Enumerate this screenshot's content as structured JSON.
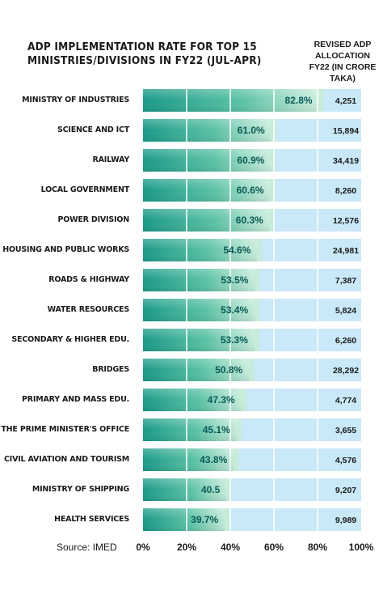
{
  "chart_data": {
    "type": "bar",
    "orientation": "horizontal",
    "title": "ADP IMPLEMENTATION RATE FOR TOP 15 MINISTRIES/DIVISIONS IN FY22 (JUL-APR)",
    "allocation_header": "REVISED ADP ALLOCATION FY22 (IN CRORE TAKA)",
    "categories": [
      "MINISTRY OF INDUSTRIES",
      "SCIENCE AND ICT",
      "RAILWAY",
      "LOCAL GOVERNMENT",
      "POWER DIVISION",
      "HOUSING AND PUBLIC WORKS",
      "ROADS & HIGHWAY",
      "WATER RESOURCES",
      "SECONDARY & HIGHER EDU.",
      "BRIDGES",
      "PRIMARY AND MASS EDU.",
      "THE PRIME MINISTER'S OFFICE",
      "CIVIL AVIATION AND TOURISM",
      "MINISTRY OF SHIPPING",
      "HEALTH SERVICES"
    ],
    "values": [
      82.8,
      61.0,
      60.9,
      60.6,
      60.3,
      54.6,
      53.5,
      53.4,
      53.3,
      50.8,
      47.3,
      45.1,
      43.8,
      40.5,
      39.7
    ],
    "value_labels": [
      "82.8%",
      "61.0%",
      "60.9%",
      "60.6%",
      "60.3%",
      "54.6%",
      "53.5%",
      "53.4%",
      "53.3%",
      "50.8%",
      "47.3%",
      "45.1%",
      "43.8%",
      "40.5",
      "39.7%"
    ],
    "allocations": [
      "4,251",
      "15,894",
      "34,419",
      "8,260",
      "12,576",
      "24,981",
      "7,387",
      "5,824",
      "6,260",
      "28,292",
      "4,774",
      "3,655",
      "4,576",
      "9,207",
      "9,989"
    ],
    "xlim": [
      0,
      100
    ],
    "x_ticks": [
      "0%",
      "20%",
      "40%",
      "60%",
      "80%",
      "100%"
    ],
    "source": "Source: IMED",
    "colors": {
      "bar_dark": "#1f9e8c",
      "bar_light": "#c7ebd9",
      "track": "#c9e8f8",
      "gridline": "#ffffff",
      "value_text": "#0c5a57"
    }
  }
}
